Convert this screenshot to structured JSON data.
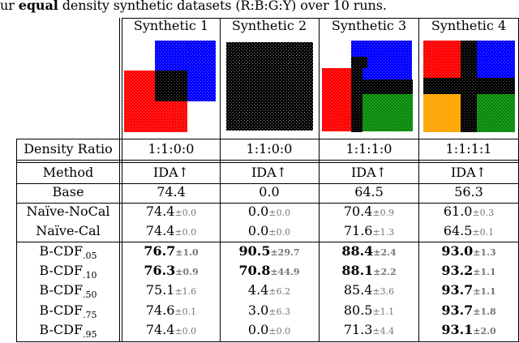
{
  "caption": {
    "prefix": "ur ",
    "bold_word": "equal",
    "suffix": " density synthetic datasets (R:B:G:Y) over 10 runs."
  },
  "headers": [
    "Synthetic 1",
    "Synthetic 2",
    "Synthetic 3",
    "Synthetic 4"
  ],
  "thumbnails": [
    {
      "name": "synthetic-1-scatter",
      "desc": "red + blue squares overlap (black)"
    },
    {
      "name": "synthetic-2-scatter",
      "desc": "all black"
    },
    {
      "name": "synthetic-3-scatter",
      "desc": "red, blue, green with black overlaps"
    },
    {
      "name": "synthetic-4-scatter",
      "desc": "red, blue, orange, green with black cross"
    }
  ],
  "colors": {
    "red": "#ff0000",
    "blue": "#0000ff",
    "green": "#0a8a0a",
    "yellow": "#ffa500",
    "black": "#000000",
    "std_gray": "#777777"
  },
  "density_row": {
    "label": "Density Ratio",
    "values": [
      "1:1:0:0",
      "1:1:0:0",
      "1:1:1:0",
      "1:1:1:1"
    ]
  },
  "method_header": {
    "label": "Method",
    "metric": "IDA↑"
  },
  "rows": [
    {
      "method": "Base",
      "sub": "",
      "cells": [
        {
          "v": "74.4",
          "s": "",
          "b": false
        },
        {
          "v": "0.0",
          "s": "",
          "b": false
        },
        {
          "v": "64.5",
          "s": "",
          "b": false
        },
        {
          "v": "56.3",
          "s": "",
          "b": false
        }
      ]
    },
    {
      "method": "Naïve-NoCal",
      "sub": "",
      "cells": [
        {
          "v": "74.4",
          "s": "±0.0",
          "b": false
        },
        {
          "v": "0.0",
          "s": "±0.0",
          "b": false
        },
        {
          "v": "70.4",
          "s": "±0.9",
          "b": false
        },
        {
          "v": "61.0",
          "s": "±0.3",
          "b": false
        }
      ]
    },
    {
      "method": "Naïve-Cal",
      "sub": "",
      "cells": [
        {
          "v": "74.4",
          "s": "±0.0",
          "b": false
        },
        {
          "v": "0.0",
          "s": "±0.0",
          "b": false
        },
        {
          "v": "71.6",
          "s": "±1.3",
          "b": false
        },
        {
          "v": "64.5",
          "s": "±0.1",
          "b": false
        }
      ]
    },
    {
      "method": "B-CDF",
      "sub": ".05",
      "cells": [
        {
          "v": "76.7",
          "s": "±1.0",
          "b": true
        },
        {
          "v": "90.5",
          "s": "±29.7",
          "b": true
        },
        {
          "v": "88.4",
          "s": "±2.4",
          "b": true
        },
        {
          "v": "93.0",
          "s": "±1.3",
          "b": true
        }
      ]
    },
    {
      "method": "B-CDF",
      "sub": ".10",
      "cells": [
        {
          "v": "76.3",
          "s": "±0.9",
          "b": true
        },
        {
          "v": "70.8",
          "s": "±44.9",
          "b": true
        },
        {
          "v": "88.1",
          "s": "±2.2",
          "b": true
        },
        {
          "v": "93.2",
          "s": "±1.1",
          "b": true
        }
      ]
    },
    {
      "method": "B-CDF",
      "sub": ".50",
      "cells": [
        {
          "v": "75.1",
          "s": "±1.6",
          "b": false
        },
        {
          "v": "4.4",
          "s": "±6.2",
          "b": false
        },
        {
          "v": "85.4",
          "s": "±3.6",
          "b": false
        },
        {
          "v": "93.7",
          "s": "±1.1",
          "b": true
        }
      ]
    },
    {
      "method": "B-CDF",
      "sub": ".75",
      "cells": [
        {
          "v": "74.6",
          "s": "±0.1",
          "b": false
        },
        {
          "v": "3.0",
          "s": "±6.3",
          "b": false
        },
        {
          "v": "80.5",
          "s": "±1.1",
          "b": false
        },
        {
          "v": "93.7",
          "s": "±1.8",
          "b": true
        }
      ]
    },
    {
      "method": "B-CDF",
      "sub": ".95",
      "cells": [
        {
          "v": "74.4",
          "s": "±0.0",
          "b": false
        },
        {
          "v": "0.0",
          "s": "±0.0",
          "b": false
        },
        {
          "v": "71.3",
          "s": "±4.4",
          "b": false
        },
        {
          "v": "93.1",
          "s": "±2.0",
          "b": true
        }
      ]
    }
  ]
}
